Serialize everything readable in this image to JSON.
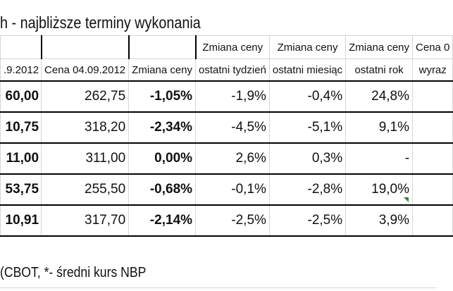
{
  "title": "h - najbliższe terminy wykonania",
  "header_top": [
    "",
    "",
    "",
    "Zmiana ceny",
    "Zmiana ceny",
    "Zmiana ceny",
    "Cena 0"
  ],
  "header_bottom": [
    ".9.2012",
    "Cena 04.09.2012",
    "Zmiana ceny",
    "ostatni tydzień",
    "ostatni miesiąc",
    "ostatni rok",
    "wyraz"
  ],
  "rows": [
    [
      "60,00",
      "262,75",
      "-1,05%",
      "-1,9%",
      "-0,4%",
      "24,8%",
      ""
    ],
    [
      "10,75",
      "318,20",
      "-2,34%",
      "-4,5%",
      "-5,1%",
      "9,1%",
      ""
    ],
    [
      "11,00",
      "311,00",
      "0,00%",
      "2,6%",
      "0,3%",
      "-",
      ""
    ],
    [
      "53,75",
      "255,50",
      "-0,68%",
      "-0,1%",
      "-2,8%",
      "19,0%",
      ""
    ],
    [
      "10,91",
      "317,70",
      "-2,14%",
      "-2,5%",
      "-2,5%",
      "3,9%",
      ""
    ]
  ],
  "footer": "(CBOT, *- średni kurs NBP",
  "colors": {
    "grid_heavy": "#000000",
    "grid_light": "#d6d6d6",
    "marker": "#2e8b2e"
  }
}
